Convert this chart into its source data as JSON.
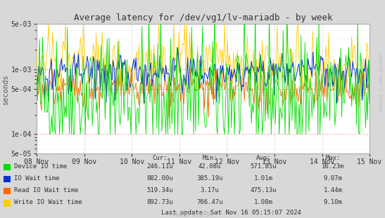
{
  "title": "Average latency for /dev/vg1/lv-mariadb - by week",
  "ylabel": "seconds",
  "background_color": "#d8d8d8",
  "plot_background_color": "#ffffff",
  "grid_color_major": "#ff9999",
  "grid_color_minor": "#eeeeee",
  "border_color": "#aaaaaa",
  "title_color": "#333333",
  "axis_label_color": "#555555",
  "tick_label_color": "#333333",
  "xticklabels": [
    "08 Nov",
    "09 Nov",
    "10 Nov",
    "11 Nov",
    "12 Nov",
    "13 Nov",
    "14 Nov",
    "15 Nov"
  ],
  "ymin": 5e-05,
  "ymax": 0.005,
  "yticks": [
    5e-05,
    0.0001,
    0.0005,
    0.001,
    0.005
  ],
  "yticklabels": [
    "5e-05",
    "1e-04",
    "5e-04",
    "1e-03",
    "5e-03"
  ],
  "legend_entries": [
    {
      "label": "Device IO time",
      "color": "#00dd00"
    },
    {
      "label": "IO Wait time",
      "color": "#0033cc"
    },
    {
      "label": "Read IO Wait time",
      "color": "#ff6600"
    },
    {
      "label": "Write IO Wait time",
      "color": "#ffcc00"
    }
  ],
  "table_headers": [
    "Cur:",
    "Min:",
    "Avg:",
    "Max:"
  ],
  "table_rows": [
    [
      "Device IO time",
      "246.11u",
      "42.08u",
      "571.85u",
      "16.23m"
    ],
    [
      "IO Wait time",
      "882.00u",
      "385.19u",
      "1.01m",
      "9.07m"
    ],
    [
      "Read IO Wait time",
      "519.34u",
      "3.17u",
      "475.13u",
      "1.44m"
    ],
    [
      "Write IO Wait time",
      "892.73u",
      "766.47u",
      "1.08m",
      "9.10m"
    ]
  ],
  "last_update": "Last update: Sat Nov 16 05:15:07 2024",
  "munin_version": "Munin 2.0.56",
  "watermark": "RRDTOOL / TOBI OETIKER"
}
